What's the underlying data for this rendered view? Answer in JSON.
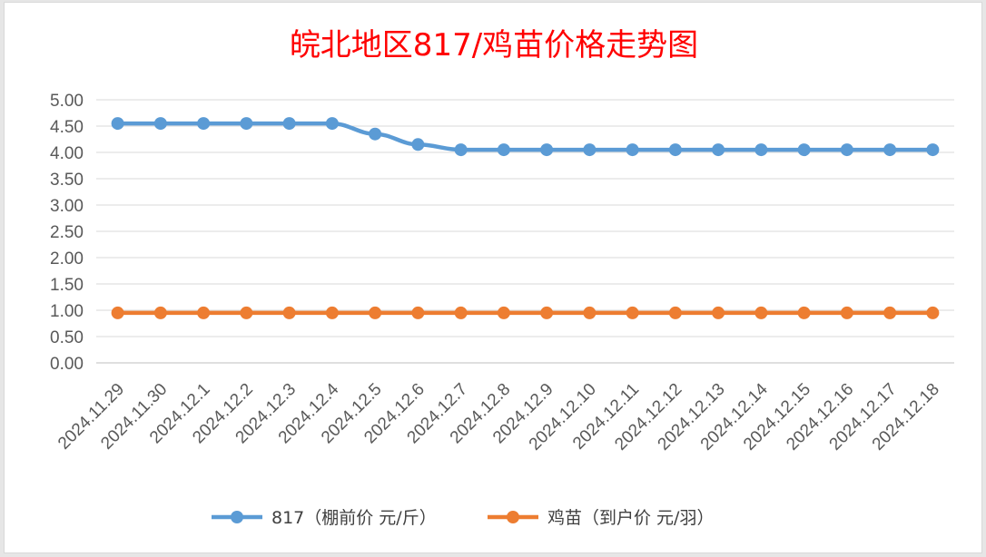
{
  "chart_data": {
    "type": "line",
    "title": "皖北地区817/鸡苗价格走势图",
    "title_color": "#ff0000",
    "xlabel": "",
    "ylabel": "",
    "categories": [
      "2024.11.29",
      "2024.11.30",
      "2024.12.1",
      "2024.12.2",
      "2024.12.3",
      "2024.12.4",
      "2024.12.5",
      "2024.12.6",
      "2024.12.7",
      "2024.12.8",
      "2024.12.9",
      "2024.12.10",
      "2024.12.11",
      "2024.12.12",
      "2024.12.13",
      "2024.12.14",
      "2024.12.15",
      "2024.12.16",
      "2024.12.17",
      "2024.12.18"
    ],
    "y_ticks": [
      "0.00",
      "0.50",
      "1.00",
      "1.50",
      "2.00",
      "2.50",
      "3.00",
      "3.50",
      "4.00",
      "4.50",
      "5.00"
    ],
    "ylim": [
      0,
      5
    ],
    "grid": true,
    "legend_position": "bottom",
    "series": [
      {
        "name": "817（棚前价 元/斤）",
        "color": "#5b9bd5",
        "values": [
          4.55,
          4.55,
          4.55,
          4.55,
          4.55,
          4.55,
          4.35,
          4.15,
          4.05,
          4.05,
          4.05,
          4.05,
          4.05,
          4.05,
          4.05,
          4.05,
          4.05,
          4.05,
          4.05,
          4.05
        ]
      },
      {
        "name": "鸡苗（到户价 元/羽）",
        "color": "#ed7d31",
        "values": [
          0.95,
          0.95,
          0.95,
          0.95,
          0.95,
          0.95,
          0.95,
          0.95,
          0.95,
          0.95,
          0.95,
          0.95,
          0.95,
          0.95,
          0.95,
          0.95,
          0.95,
          0.95,
          0.95,
          0.95
        ]
      }
    ]
  }
}
